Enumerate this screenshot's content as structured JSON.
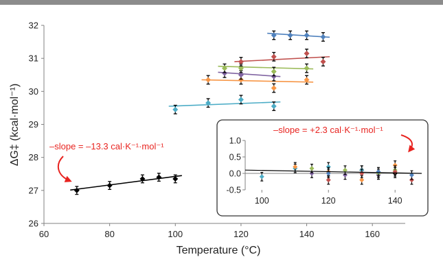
{
  "chart_data": [
    {
      "type": "scatter",
      "xlabel": "Temperature (°C)",
      "ylabel": "ΔG‡ (kcal·mol⁻¹)",
      "xlim": [
        60,
        170
      ],
      "ylim": [
        26,
        32
      ],
      "xticks": [
        60,
        80,
        100,
        120,
        140,
        160
      ],
      "yticks": [
        26,
        27,
        28,
        29,
        30,
        31,
        32
      ],
      "grid": false,
      "series": [
        {
          "color": "#000000",
          "x": [
            70,
            80,
            90,
            95,
            100
          ],
          "y": [
            27.0,
            27.15,
            27.35,
            27.4,
            27.35
          ],
          "err": [
            0.12,
            0.12,
            0.12,
            0.12,
            0.12
          ],
          "fit": [
            [
              68,
              27.01
            ],
            [
              102,
              27.45
            ]
          ]
        },
        {
          "color": "#4bacc6",
          "x": [
            100,
            110,
            120,
            130
          ],
          "y": [
            29.45,
            29.65,
            29.75,
            29.55
          ],
          "err": [
            0.13,
            0.13,
            0.13,
            0.13
          ],
          "fit": [
            [
              98,
              29.55
            ],
            [
              132,
              29.68
            ]
          ]
        },
        {
          "color": "#f79646",
          "x": [
            110,
            120,
            130,
            140
          ],
          "y": [
            30.35,
            30.35,
            30.1,
            30.35
          ],
          "err": [
            0.13,
            0.13,
            0.13,
            0.13
          ],
          "fit": [
            [
              108,
              30.35
            ],
            [
              142,
              30.28
            ]
          ]
        },
        {
          "color": "#8064a2",
          "x": [
            115,
            120,
            130
          ],
          "y": [
            30.55,
            30.5,
            30.45
          ],
          "err": [
            0.13,
            0.13,
            0.13
          ],
          "fit": [
            [
              113,
              30.58
            ],
            [
              132,
              30.45
            ]
          ]
        },
        {
          "color": "#9bbb59",
          "x": [
            115,
            120,
            130,
            140
          ],
          "y": [
            30.7,
            30.7,
            30.6,
            30.7
          ],
          "err": [
            0.13,
            0.13,
            0.13,
            0.13
          ],
          "fit": [
            [
              113,
              30.76
            ],
            [
              142,
              30.68
            ]
          ]
        },
        {
          "color": "#c0504d",
          "x": [
            120,
            130,
            140,
            145
          ],
          "y": [
            30.9,
            31.05,
            31.15,
            30.9
          ],
          "err": [
            0.13,
            0.13,
            0.13,
            0.13
          ],
          "fit": [
            [
              118,
              30.9
            ],
            [
              147,
              31.05
            ]
          ]
        },
        {
          "color": "#4f81bd",
          "x": [
            130,
            135,
            140,
            145
          ],
          "y": [
            31.7,
            31.7,
            31.7,
            31.65
          ],
          "err": [
            0.13,
            0.13,
            0.13,
            0.13
          ],
          "fit": [
            [
              128,
              31.76
            ],
            [
              147,
              31.64
            ]
          ]
        }
      ],
      "annotation": {
        "text": "–slope = –13.3 cal·K⁻¹·mol⁻¹",
        "color": "#e8231f"
      }
    },
    {
      "type": "scatter",
      "xlim": [
        95,
        148
      ],
      "ylim": [
        -0.5,
        1.0
      ],
      "xticks": [
        100,
        120,
        140
      ],
      "yticks": [
        "1.0",
        "0.5",
        "0.0",
        "-0.5"
      ],
      "grid": false,
      "series": [
        {
          "color": "#000000",
          "x": [
            120,
            130,
            140
          ],
          "y": [
            0.05,
            0.1,
            0.0
          ],
          "err": [
            0.13,
            0.13,
            0.13
          ]
        },
        {
          "color": "#4bacc6",
          "x": [
            100,
            110,
            120,
            130
          ],
          "y": [
            -0.1,
            0.15,
            0.2,
            0.1
          ],
          "err": [
            0.13,
            0.13,
            0.13,
            0.13
          ]
        },
        {
          "color": "#f79646",
          "x": [
            110,
            120,
            130,
            140
          ],
          "y": [
            0.2,
            0.05,
            -0.2,
            0.25
          ],
          "err": [
            0.13,
            0.13,
            0.13,
            0.13
          ]
        },
        {
          "color": "#8064a2",
          "x": [
            115,
            125,
            135
          ],
          "y": [
            0.0,
            -0.05,
            -0.05
          ],
          "err": [
            0.13,
            0.13,
            0.13
          ]
        },
        {
          "color": "#9bbb59",
          "x": [
            115,
            125,
            135,
            140
          ],
          "y": [
            0.15,
            0.1,
            0.0,
            0.1
          ],
          "err": [
            0.13,
            0.13,
            0.13,
            0.13
          ]
        },
        {
          "color": "#c0504d",
          "x": [
            120,
            130,
            140,
            145
          ],
          "y": [
            -0.2,
            0.0,
            0.05,
            -0.2
          ],
          "err": [
            0.13,
            0.13,
            0.13,
            0.13
          ]
        },
        {
          "color": "#4f81bd",
          "x": [
            120,
            135,
            145
          ],
          "y": [
            0.0,
            0.05,
            -0.05
          ],
          "err": [
            0.13,
            0.13,
            0.13
          ]
        }
      ],
      "fit": [
        [
          95,
          0.1
        ],
        [
          148,
          0.0
        ]
      ],
      "annotation": {
        "text": "–slope = +2.3 cal·K⁻¹·mol⁻¹",
        "color": "#e8231f"
      }
    }
  ]
}
